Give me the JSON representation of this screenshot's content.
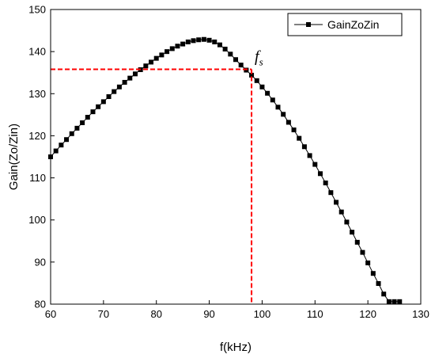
{
  "chart_data": {
    "type": "line",
    "title": "",
    "xlabel": "f(kHz)",
    "ylabel": "Gain(Zo/Zin)",
    "xlim": [
      60,
      130
    ],
    "ylim": [
      80,
      150
    ],
    "xticks": [
      60,
      70,
      80,
      90,
      100,
      110,
      120,
      130
    ],
    "yticks": [
      80,
      90,
      100,
      110,
      120,
      130,
      140,
      150
    ],
    "grid": false,
    "legend_position": "top-right",
    "series": [
      {
        "name": "GainZoZin",
        "marker": "square",
        "color": "#000000",
        "x": [
          60,
          61,
          62,
          63,
          64,
          65,
          66,
          67,
          68,
          69,
          70,
          71,
          72,
          73,
          74,
          75,
          76,
          77,
          78,
          79,
          80,
          81,
          82,
          83,
          84,
          85,
          86,
          87,
          88,
          89,
          90,
          91,
          92,
          93,
          94,
          95,
          96,
          97,
          98,
          99,
          100,
          101,
          102,
          103,
          104,
          105,
          106,
          107,
          108,
          109,
          110,
          111,
          112,
          113,
          114,
          115,
          116,
          117,
          118,
          119,
          120,
          121,
          122,
          123,
          124,
          125,
          126
        ],
        "y": [
          115.0,
          116.4,
          117.8,
          119.1,
          120.5,
          121.8,
          123.1,
          124.4,
          125.7,
          126.9,
          128.1,
          129.3,
          130.5,
          131.6,
          132.7,
          133.7,
          134.7,
          135.7,
          136.6,
          137.5,
          138.4,
          139.2,
          140.0,
          140.7,
          141.3,
          141.8,
          142.3,
          142.6,
          142.8,
          142.9,
          142.7,
          142.3,
          141.6,
          140.6,
          139.4,
          138.1,
          136.8,
          135.6,
          134.4,
          133.1,
          131.6,
          130.1,
          128.5,
          126.8,
          125.1,
          123.2,
          121.4,
          119.4,
          117.4,
          115.3,
          113.2,
          111.0,
          108.8,
          106.5,
          104.2,
          101.9,
          99.5,
          97.1,
          94.7,
          92.3,
          89.8,
          87.3,
          84.9,
          82.4,
          80.6,
          80.6,
          80.6
        ]
      }
    ],
    "annotations": [
      {
        "text": "f",
        "subscript": "s",
        "x": 98,
        "y": 135.8,
        "color": "#ff0000",
        "style": "dashed crosshair from axes to curve point"
      }
    ]
  }
}
